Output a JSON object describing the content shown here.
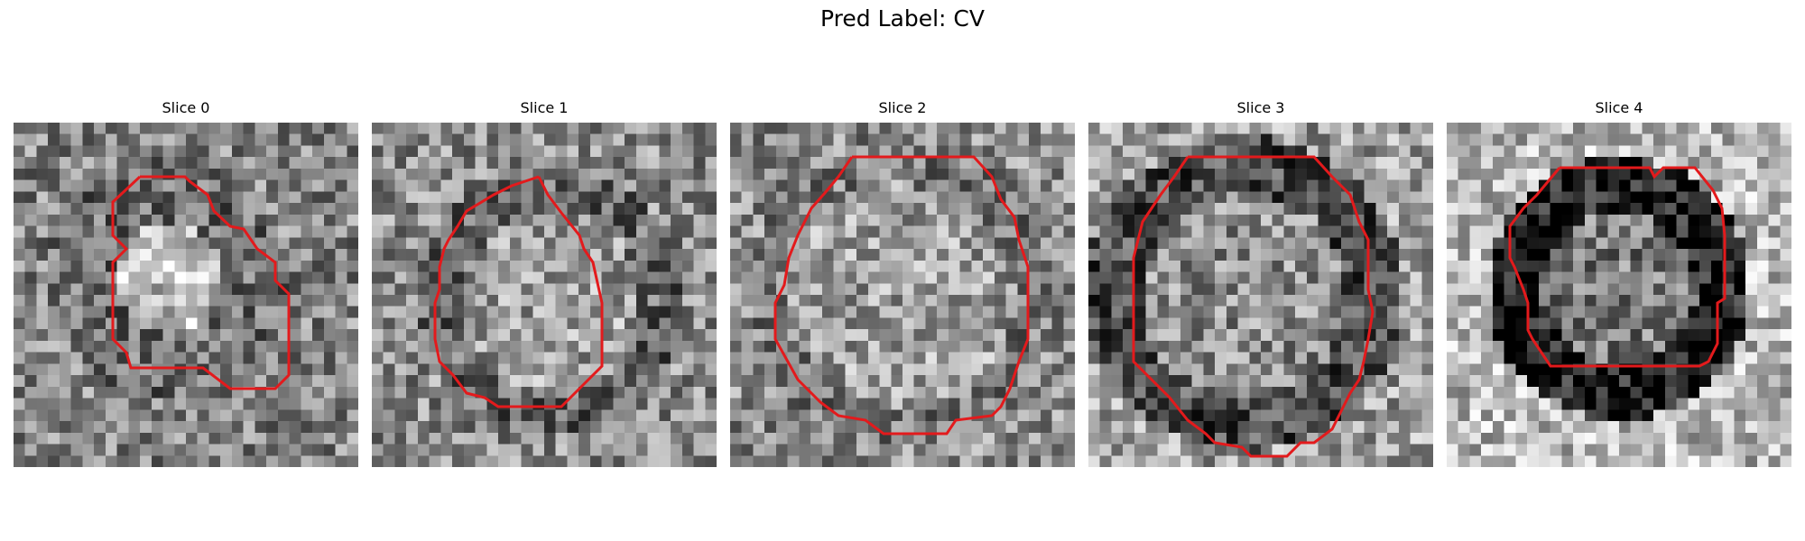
{
  "figure": {
    "suptitle": "Pred Label: CV",
    "contour_color": "#e31a1c",
    "colormap": "grayscale"
  },
  "slices": [
    {
      "title": "Slice 0"
    },
    {
      "title": "Slice 1"
    },
    {
      "title": "Slice 2"
    },
    {
      "title": "Slice 3"
    },
    {
      "title": "Slice 4"
    }
  ]
}
